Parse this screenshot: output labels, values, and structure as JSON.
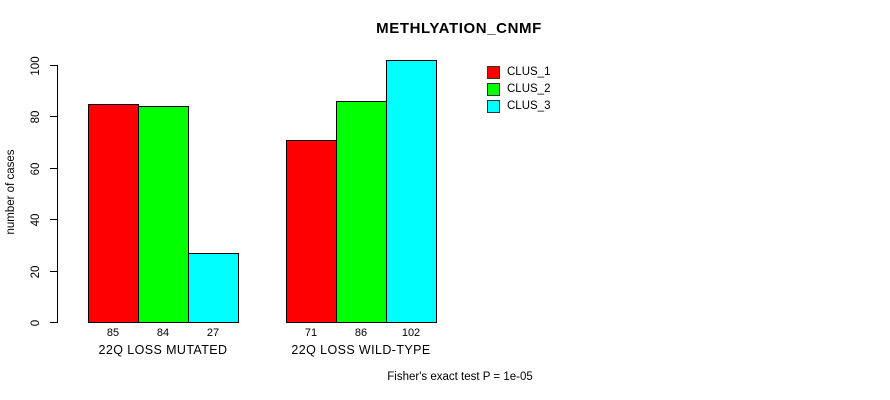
{
  "chart_data": {
    "type": "bar",
    "title": "METHLYATION_CNMF",
    "xlabel": "",
    "ylabel": "number of cases",
    "categories": [
      "22Q LOSS MUTATED",
      "22Q LOSS WILD-TYPE"
    ],
    "series": [
      {
        "name": "CLUS_1",
        "color": "#ff0000",
        "values": [
          85,
          71
        ]
      },
      {
        "name": "CLUS_2",
        "color": "#00ff00",
        "values": [
          84,
          86
        ]
      },
      {
        "name": "CLUS_3",
        "color": "#00ffff",
        "values": [
          27,
          102
        ]
      }
    ],
    "bar_labels": [
      [
        85,
        84,
        27
      ],
      [
        71,
        86,
        102
      ]
    ],
    "ylim": [
      0,
      100
    ],
    "yticks": [
      0,
      20,
      40,
      60,
      80,
      100
    ],
    "grid": false,
    "legend_position": "top-right",
    "annotation": "Fisher's exact test P = 1e-05"
  }
}
